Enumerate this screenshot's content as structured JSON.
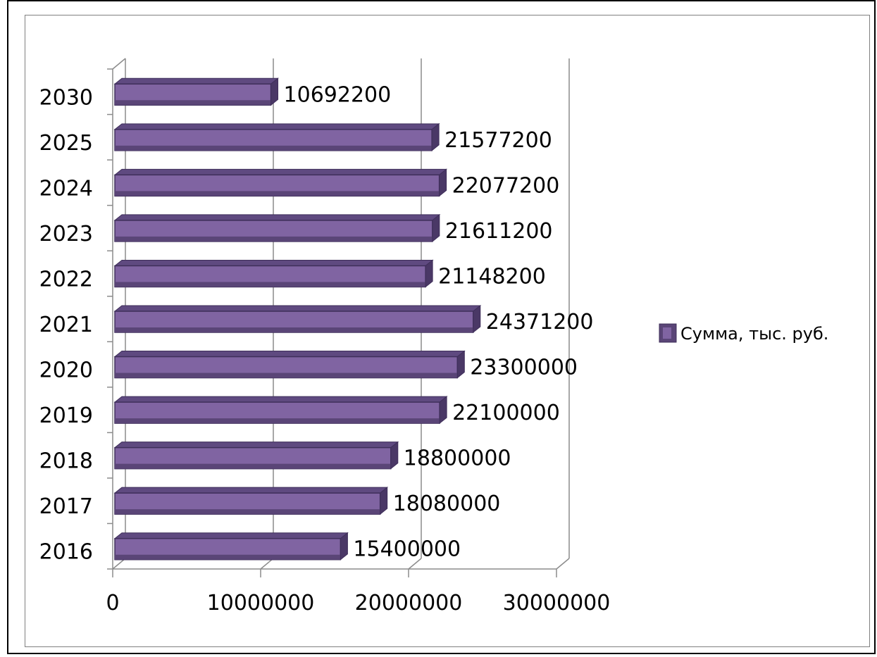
{
  "chart_data": {
    "type": "bar",
    "orientation": "horizontal",
    "categories": [
      "2016",
      "2017",
      "2018",
      "2019",
      "2020",
      "2021",
      "2022",
      "2023",
      "2024",
      "2025",
      "2030"
    ],
    "series": [
      {
        "name": "Сумма, тыс. руб.",
        "values": [
          15400000,
          18080000,
          18800000,
          22100000,
          23300000,
          24371200,
          21148200,
          21611200,
          22077200,
          21577200,
          10692200
        ]
      }
    ],
    "xlim": [
      0,
      30000000
    ],
    "x_ticks": [
      "0",
      "10000000",
      "20000000",
      "30000000"
    ],
    "grid": true,
    "legend_position": "right",
    "bar_color": "#8064a2",
    "bar_dark_color": "#5a4577",
    "title": "",
    "xlabel": "",
    "ylabel": ""
  }
}
